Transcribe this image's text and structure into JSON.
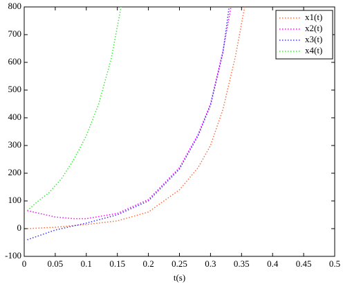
{
  "chart_data": {
    "type": "line",
    "xlabel": "t(s)",
    "xlim": [
      0,
      0.5
    ],
    "xticks": [
      0,
      0.05,
      0.1,
      0.15,
      0.2,
      0.25,
      0.3,
      0.35,
      0.4,
      0.45,
      0.5
    ],
    "ylim": [
      -100,
      800
    ],
    "yticks": [
      -100,
      0,
      100,
      200,
      300,
      400,
      500,
      600,
      700,
      800
    ],
    "legend": "top-right",
    "grid": false,
    "series": [
      {
        "name": "x1(t)",
        "color": "#ff6a3d",
        "x": [
          0.005,
          0.05,
          0.1,
          0.15,
          0.2,
          0.25,
          0.28,
          0.3,
          0.32,
          0.34,
          0.355
        ],
        "values": [
          0,
          5,
          15,
          28,
          60,
          140,
          220,
          300,
          430,
          620,
          800
        ]
      },
      {
        "name": "x2(t)",
        "color": "#ff00ff",
        "x": [
          0.005,
          0.05,
          0.08,
          0.1,
          0.15,
          0.2,
          0.25,
          0.28,
          0.3,
          0.32,
          0.333
        ],
        "values": [
          65,
          42,
          36,
          36,
          55,
          105,
          220,
          340,
          450,
          640,
          800
        ]
      },
      {
        "name": "x3(t)",
        "color": "#3333ff",
        "x": [
          0.005,
          0.05,
          0.1,
          0.15,
          0.2,
          0.25,
          0.28,
          0.3,
          0.32,
          0.33
        ],
        "values": [
          -40,
          -5,
          20,
          50,
          100,
          215,
          335,
          445,
          635,
          800
        ]
      },
      {
        "name": "x4(t)",
        "color": "#33ee33",
        "x": [
          0.005,
          0.02,
          0.04,
          0.06,
          0.08,
          0.1,
          0.12,
          0.14,
          0.156
        ],
        "values": [
          65,
          95,
          130,
          180,
          250,
          335,
          450,
          612,
          800
        ]
      }
    ]
  }
}
